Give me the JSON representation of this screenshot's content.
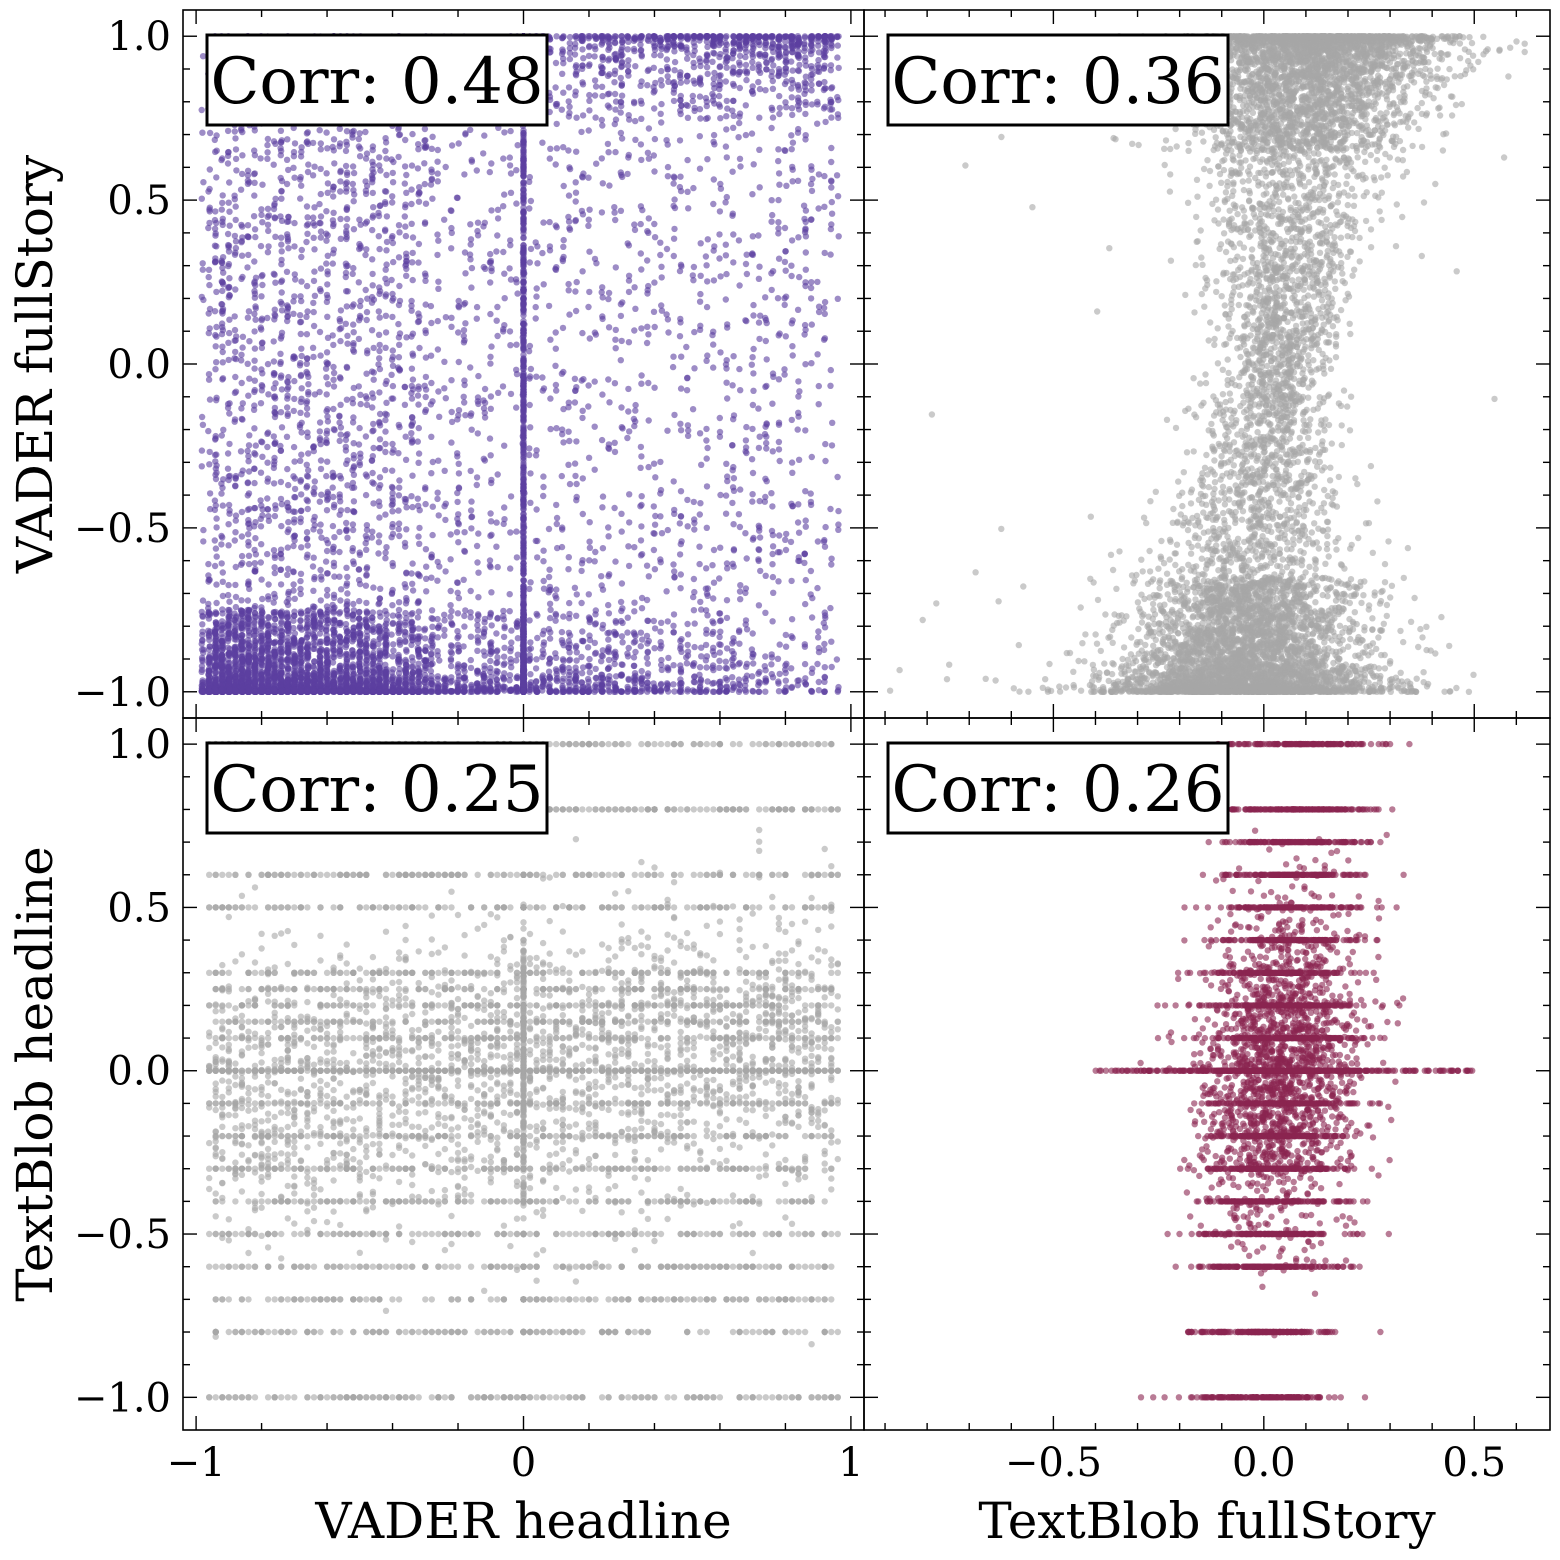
{
  "chart_data": [
    {
      "type": "scatter",
      "panel": "top-left",
      "annotation": "Corr: 0.48",
      "xlabel": "",
      "ylabel": "VADER fullStory",
      "xlim": [
        -1.04,
        1.04
      ],
      "ylim": [
        -1.08,
        1.08
      ],
      "color": "#5b3fa0",
      "x_ticks": [],
      "y_ticks": [
        1.0,
        0.5,
        0.0,
        -0.5,
        -1.0
      ],
      "y_tick_labels": [
        "1.0",
        "0.5",
        "0.0",
        "−0.5",
        "−1.0"
      ],
      "series": [
        {
          "generator": "vader_vs_vader",
          "points": 9000,
          "corr": 0.48
        }
      ]
    },
    {
      "type": "scatter",
      "panel": "top-right",
      "annotation": "Corr: 0.36",
      "xlabel": "",
      "ylabel": "",
      "xlim": [
        -0.95,
        0.68
      ],
      "ylim": [
        -1.08,
        1.08
      ],
      "color": "#a6a6a6",
      "x_ticks": [],
      "y_ticks": [],
      "series": [
        {
          "generator": "textblob_vs_vader",
          "points": 9000,
          "corr": 0.36
        }
      ]
    },
    {
      "type": "scatter",
      "panel": "bottom-left",
      "annotation": "Corr: 0.25",
      "xlabel": "VADER headline",
      "ylabel": "TextBlob headline",
      "xlim": [
        -1.04,
        1.04
      ],
      "ylim": [
        -1.1,
        1.08
      ],
      "color": "#a6a6a6",
      "x_ticks": [
        -1,
        0,
        1
      ],
      "x_tick_labels": [
        "−1",
        "0",
        "1"
      ],
      "y_ticks": [
        1.0,
        0.5,
        0.0,
        -0.5,
        -1.0
      ],
      "y_tick_labels": [
        "1.0",
        "0.5",
        "0.0",
        "−0.5",
        "−1.0"
      ],
      "series": [
        {
          "generator": "vader_vs_textblob",
          "points": 6000,
          "corr": 0.25
        }
      ]
    },
    {
      "type": "scatter",
      "panel": "bottom-right",
      "annotation": "Corr: 0.26",
      "xlabel": "TextBlob fullStory",
      "ylabel": "",
      "xlim": [
        -0.95,
        0.68
      ],
      "ylim": [
        -1.1,
        1.08
      ],
      "color": "#8b2550",
      "x_ticks": [
        -0.5,
        0.0,
        0.5
      ],
      "x_tick_labels": [
        "−0.5",
        "0.0",
        "0.5"
      ],
      "y_ticks": [],
      "series": [
        {
          "generator": "textblob_vs_textblob",
          "points": 5000,
          "corr": 0.26
        }
      ]
    }
  ]
}
